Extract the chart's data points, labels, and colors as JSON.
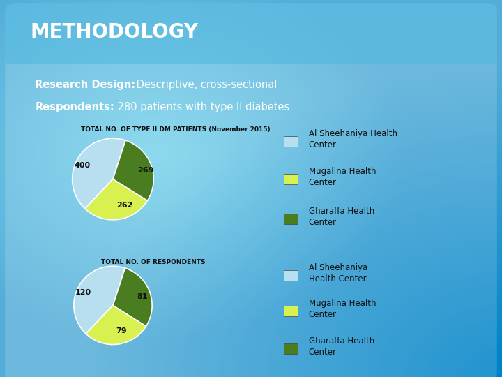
{
  "header_text": "METHODOLOGY",
  "line1_bold": "Research Design:",
  "line1_rest": " Descriptive, cross-sectional",
  "line2_bold": "Respondents:",
  "line2_rest": " 280 patients with type II diabetes",
  "pie1_title": "TOTAL NO. OF TYPE II DM PATIENTS (November 2015)",
  "pie1_values": [
    400,
    262,
    269
  ],
  "pie1_labels": [
    "400",
    "262",
    "269"
  ],
  "pie1_colors": [
    "#b8dff0",
    "#d8f050",
    "#4a7c20"
  ],
  "pie2_title": "TOTAL NO. OF RESPONDENTS",
  "pie2_values": [
    120,
    79,
    81
  ],
  "pie2_labels": [
    "120",
    "79",
    "81"
  ],
  "pie2_colors": [
    "#b8dff0",
    "#d8f050",
    "#4a7c20"
  ],
  "legend1_labels": [
    "Al Sheehaniya Health\nCenter",
    "Mugalina Health\nCenter",
    "Gharaffa Health\nCenter"
  ],
  "legend2_labels": [
    "Al Sheehaniya\nHealth Center",
    "Mugalina Health\nCenter",
    "Gharaffa Health\nCenter"
  ],
  "legend_colors": [
    "#b8dff0",
    "#d8f050",
    "#4a7c20"
  ],
  "bg_colors": [
    "#5bc8e8",
    "#3a9ac8",
    "#1a5f8a",
    "#2a80b0"
  ],
  "text_color_dark": "#111111",
  "text_color_white": "#ffffff",
  "title_fontsize": 20,
  "body_fontsize": 10.5,
  "pie1_startangle": 72,
  "pie2_startangle": 72
}
